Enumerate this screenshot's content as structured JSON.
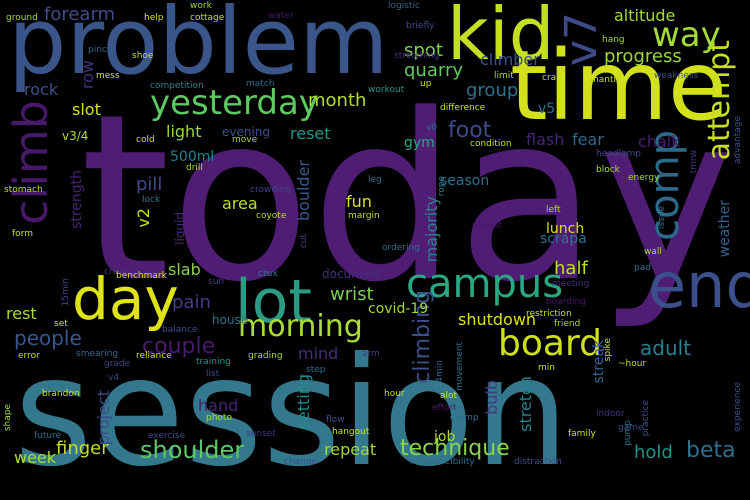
{
  "background": "#000000",
  "words": [
    {
      "text": "today",
      "color": "#4f1d73"
    },
    {
      "text": "session",
      "color": "#33788c"
    },
    {
      "text": "problem",
      "color": "#3a558a"
    },
    {
      "text": "time",
      "color": "#d3e11d"
    },
    {
      "text": "kid",
      "color": "#c4df22"
    },
    {
      "text": "climb",
      "color": "#48196b"
    },
    {
      "text": "lot",
      "color": "#2b9b83"
    },
    {
      "text": "day",
      "color": "#dde318"
    },
    {
      "text": "end",
      "color": "#3b4f8b"
    },
    {
      "text": "yesterday",
      "color": "#5dc961"
    },
    {
      "text": "campus",
      "color": "#2aa783"
    },
    {
      "text": "comp",
      "color": "#2c6a8c"
    },
    {
      "text": "v7",
      "color": "#3d4b89"
    },
    {
      "text": "board",
      "color": "#cfe01c"
    },
    {
      "text": "attempt",
      "color": "#c8df22"
    },
    {
      "text": "morning",
      "color": "#aadc32"
    },
    {
      "text": "way",
      "color": "#a2da37"
    },
    {
      "text": "climbing",
      "color": "#3b508a"
    },
    {
      "text": "couple",
      "color": "#481b6d"
    },
    {
      "text": "people",
      "color": "#39568c"
    },
    {
      "text": "shoulder",
      "color": "#5cc863"
    },
    {
      "text": "technique",
      "color": "#8bd646"
    },
    {
      "text": "finger",
      "color": "#c0df25"
    },
    {
      "text": "beta",
      "color": "#2e6f8e"
    },
    {
      "text": "hold",
      "color": "#20938c"
    },
    {
      "text": "adult",
      "color": "#27808e"
    },
    {
      "text": "foot",
      "color": "#3f4889"
    },
    {
      "text": "quarry",
      "color": "#61ca60"
    },
    {
      "text": "progress",
      "color": "#9ad83e"
    },
    {
      "text": "forearm",
      "color": "#3f4a8a"
    },
    {
      "text": "month",
      "color": "#b2dd2d"
    },
    {
      "text": "altitude",
      "color": "#a5db36"
    },
    {
      "text": "spot",
      "color": "#7fd34e"
    },
    {
      "text": "group",
      "color": "#2d718e"
    },
    {
      "text": "climber",
      "color": "#3b518b"
    },
    {
      "text": "flash",
      "color": "#482576"
    },
    {
      "text": "fear",
      "color": "#30688e"
    },
    {
      "text": "chalk",
      "color": "#481c6e"
    },
    {
      "text": "light",
      "color": "#9bd93c"
    },
    {
      "text": "reset",
      "color": "#1f988b"
    },
    {
      "text": "pill",
      "color": "#3e4c8a"
    },
    {
      "text": "slot",
      "color": "#d6e21a"
    },
    {
      "text": "row",
      "color": "#46307e"
    },
    {
      "text": "rock",
      "color": "#3c4f8a"
    },
    {
      "text": "v5",
      "color": "#2b748e"
    },
    {
      "text": "v3/4",
      "color": "#addc30"
    },
    {
      "text": "gym",
      "color": "#25ab82"
    },
    {
      "text": "season",
      "color": "#2e6f8e"
    },
    {
      "text": "boulder",
      "color": "#38598c"
    },
    {
      "text": "area",
      "color": "#b8de29"
    },
    {
      "text": "fun",
      "color": "#dde318"
    },
    {
      "text": "lunch",
      "color": "#d5e21a"
    },
    {
      "text": "majority",
      "color": "#25828e"
    },
    {
      "text": "weather",
      "color": "#33628d"
    },
    {
      "text": "v2",
      "color": "#c8e020"
    },
    {
      "text": "slab",
      "color": "#89d548"
    },
    {
      "text": "half",
      "color": "#bddf26"
    },
    {
      "text": "wrist",
      "color": "#7cd250"
    },
    {
      "text": "pain",
      "color": "#433e85"
    },
    {
      "text": "rest",
      "color": "#a8db34"
    },
    {
      "text": "shutdown",
      "color": "#d8e219"
    },
    {
      "text": "covid-19",
      "color": "#9fda3a"
    },
    {
      "text": "mind",
      "color": "#472c7a"
    },
    {
      "text": "setting",
      "color": "#228c8d"
    },
    {
      "text": "stretch",
      "color": "#24868e"
    },
    {
      "text": "bulb",
      "color": "#44397f"
    },
    {
      "text": "project",
      "color": "#3e4989"
    },
    {
      "text": "hand",
      "color": "#482172"
    },
    {
      "text": "repeat",
      "color": "#a2da37"
    },
    {
      "text": "week",
      "color": "#a9dc33"
    },
    {
      "text": "job",
      "color": "#addc30"
    },
    {
      "text": "streak",
      "color": "#31668e"
    },
    {
      "text": "500ml",
      "color": "#27808e"
    },
    {
      "text": "strength",
      "color": "#482475"
    },
    {
      "text": "scrapa",
      "color": "#2c718e"
    },
    {
      "text": "document",
      "color": "#472f7d"
    },
    {
      "text": "house",
      "color": "#2c728e"
    },
    {
      "text": "liquid",
      "color": "#4a2a7b"
    },
    {
      "text": "evening",
      "color": "#3c508b"
    },
    {
      "text": "ground",
      "color": "#a5db36"
    },
    {
      "text": "help",
      "color": "#d8e219"
    },
    {
      "text": "work",
      "color": "#8fd744"
    },
    {
      "text": "cottage",
      "color": "#cbe11e"
    },
    {
      "text": "water",
      "color": "#481567"
    },
    {
      "text": "logistic",
      "color": "#33638d"
    },
    {
      "text": "hang",
      "color": "#a0da39"
    },
    {
      "text": "shoe",
      "color": "#c2df23"
    },
    {
      "text": "pinch",
      "color": "#33638d"
    },
    {
      "text": "briefly",
      "color": "#3e4a89"
    },
    {
      "text": "stretching",
      "color": "#472e7c"
    },
    {
      "text": "mess",
      "color": "#d2e21b"
    },
    {
      "text": "limit",
      "color": "#a8db34"
    },
    {
      "text": "crab",
      "color": "#cae11f"
    },
    {
      "text": "mantle",
      "color": "#c2df23"
    },
    {
      "text": "weakness",
      "color": "#3e4c8a"
    },
    {
      "text": "competition",
      "color": "#26828e"
    },
    {
      "text": "match",
      "color": "#2f6c8e"
    },
    {
      "text": "workout",
      "color": "#1f9a8a"
    },
    {
      "text": "up",
      "color": "#d0e11c"
    },
    {
      "text": "difference",
      "color": "#cde11d"
    },
    {
      "text": "condition",
      "color": "#c8e020"
    },
    {
      "text": "cold",
      "color": "#d8e219"
    },
    {
      "text": "move",
      "color": "#a8db34"
    },
    {
      "text": "v0",
      "color": "#2c738e"
    },
    {
      "text": "headlamp",
      "color": "#3f4788"
    },
    {
      "text": "tmrw",
      "color": "#46337f"
    },
    {
      "text": "advantage",
      "color": "#3b528b"
    },
    {
      "text": "drill",
      "color": "#b5de2b"
    },
    {
      "text": "block",
      "color": "#addc30"
    },
    {
      "text": "energy",
      "color": "#a2da37"
    },
    {
      "text": "stomach",
      "color": "#c0df25"
    },
    {
      "text": "lock",
      "color": "#2a768e"
    },
    {
      "text": "crowding",
      "color": "#40458a"
    },
    {
      "text": "leg",
      "color": "#2e6f8e"
    },
    {
      "text": "rope",
      "color": "#2a788e"
    },
    {
      "text": "left",
      "color": "#a8db34"
    },
    {
      "text": "issue",
      "color": "#2d718e"
    },
    {
      "text": "coyote",
      "color": "#b0dd2f"
    },
    {
      "text": "margin",
      "color": "#bddf26"
    },
    {
      "text": "ordering",
      "color": "#2d708e"
    },
    {
      "text": "pocket",
      "color": "#48186a"
    },
    {
      "text": "wall",
      "color": "#a5db36"
    },
    {
      "text": "form",
      "color": "#c5e021"
    },
    {
      "text": "cut",
      "color": "#3f4788"
    },
    {
      "text": "pad",
      "color": "#2d708e"
    },
    {
      "text": "crew",
      "color": "#46307e"
    },
    {
      "text": "crux",
      "color": "#26828e"
    },
    {
      "text": "sun",
      "color": "#433e85"
    },
    {
      "text": "benchmark",
      "color": "#d0e11c"
    },
    {
      "text": "15min",
      "color": "#3f4889"
    },
    {
      "text": "meeting",
      "color": "#472d7b"
    },
    {
      "text": "boarding",
      "color": "#48186a"
    },
    {
      "text": "restriction",
      "color": "#c5e021"
    },
    {
      "text": "friend",
      "color": "#a5db36"
    },
    {
      "text": "set",
      "color": "#cfe11c"
    },
    {
      "text": "balance",
      "color": "#3d4d8a"
    },
    {
      "text": "error",
      "color": "#c2df23"
    },
    {
      "text": "smearing",
      "color": "#2f6b8e"
    },
    {
      "text": "reliance",
      "color": "#d0e11c"
    },
    {
      "text": "training",
      "color": "#1f958b"
    },
    {
      "text": "grading",
      "color": "#a8db34"
    },
    {
      "text": "arm",
      "color": "#443a83"
    },
    {
      "text": "movement",
      "color": "#2c728e"
    },
    {
      "text": "4min",
      "color": "#32658e"
    },
    {
      "text": "spike",
      "color": "#cde11d"
    },
    {
      "text": "~hour",
      "color": "#c2df23"
    },
    {
      "text": "grade",
      "color": "#3e4989"
    },
    {
      "text": "v4",
      "color": "#3f4788"
    },
    {
      "text": "list",
      "color": "#3e4989"
    },
    {
      "text": "step",
      "color": "#2f6c8e"
    },
    {
      "text": "min",
      "color": "#c4e021"
    },
    {
      "text": "brandon",
      "color": "#cae11f"
    },
    {
      "text": "hour",
      "color": "#b8de29"
    },
    {
      "text": "alot",
      "color": "#d2e21b"
    },
    {
      "text": "effort",
      "color": "#4a1d6e"
    },
    {
      "text": "cramp",
      "color": "#2c718e"
    },
    {
      "text": "indoor",
      "color": "#472e7c"
    },
    {
      "text": "practice",
      "color": "#3b528b"
    },
    {
      "text": "experience",
      "color": "#3b528b"
    },
    {
      "text": "photo",
      "color": "#addc30"
    },
    {
      "text": "flow",
      "color": "#3b528b"
    },
    {
      "text": "hangout",
      "color": "#c8e020"
    },
    {
      "text": "shape",
      "color": "#a5db36"
    },
    {
      "text": "future",
      "color": "#2c728e"
    },
    {
      "text": "exercise",
      "color": "#3f4788"
    },
    {
      "text": "sunset",
      "color": "#46307e"
    },
    {
      "text": "family",
      "color": "#cde11d"
    },
    {
      "text": "pump",
      "color": "#2c718e"
    },
    {
      "text": "game",
      "color": "#3e4989"
    },
    {
      "text": "change",
      "color": "#3b528b"
    },
    {
      "text": "reproducibility",
      "color": "#2c718e"
    },
    {
      "text": "distraction",
      "color": "#3e4c8a"
    }
  ]
}
